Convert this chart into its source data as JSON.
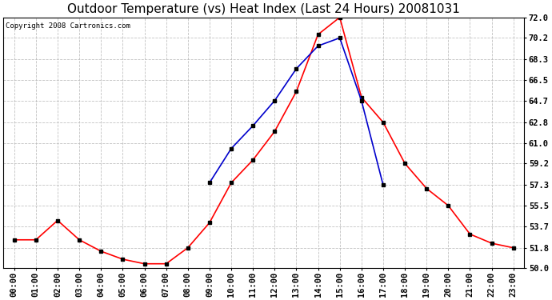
{
  "title": "Outdoor Temperature (vs) Heat Index (Last 24 Hours) 20081031",
  "copyright_text": "Copyright 2008 Cartronics.com",
  "x_labels": [
    "00:00",
    "01:00",
    "02:00",
    "03:00",
    "04:00",
    "05:00",
    "06:00",
    "07:00",
    "08:00",
    "09:00",
    "10:00",
    "11:00",
    "12:00",
    "13:00",
    "14:00",
    "15:00",
    "16:00",
    "17:00",
    "18:00",
    "19:00",
    "20:00",
    "21:00",
    "22:00",
    "23:00"
  ],
  "temp_data": [
    52.5,
    52.5,
    54.2,
    52.5,
    51.5,
    50.8,
    50.4,
    50.4,
    51.8,
    54.0,
    57.5,
    59.5,
    62.0,
    65.5,
    70.5,
    72.0,
    65.0,
    62.8,
    59.2,
    57.0,
    55.5,
    53.0,
    52.2,
    51.8
  ],
  "heat_index_data": [
    null,
    null,
    null,
    null,
    null,
    null,
    null,
    null,
    null,
    57.5,
    60.5,
    62.5,
    64.7,
    67.5,
    69.5,
    70.2,
    64.7,
    57.3,
    null,
    null,
    null,
    null,
    null,
    null
  ],
  "temp_color": "#FF0000",
  "heat_index_color": "#0000CC",
  "marker_color": "#000000",
  "background_color": "#FFFFFF",
  "plot_bg_color": "#FFFFFF",
  "grid_color": "#BBBBBB",
  "y_min": 50.0,
  "y_max": 72.0,
  "y_ticks": [
    50.0,
    51.8,
    53.7,
    55.5,
    57.3,
    59.2,
    61.0,
    62.8,
    64.7,
    66.5,
    68.3,
    70.2,
    72.0
  ],
  "title_fontsize": 11,
  "tick_fontsize": 7.5,
  "copyright_fontsize": 6.5
}
